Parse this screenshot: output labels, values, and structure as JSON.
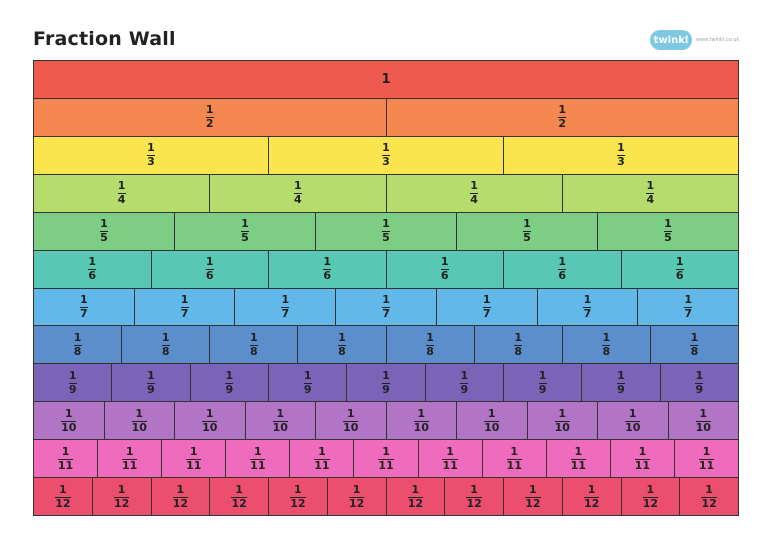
{
  "title": "Fraction Wall",
  "brand": {
    "logo_text": "twinkl",
    "url": "www.twinkl.co.uk",
    "logo_color": "#7ec8e3"
  },
  "wall": {
    "rows": [
      {
        "denominator": 1,
        "color": "#ef5a4e",
        "whole_label": "1"
      },
      {
        "denominator": 2,
        "color": "#f4874f"
      },
      {
        "denominator": 3,
        "color": "#fbe54f"
      },
      {
        "denominator": 4,
        "color": "#b5dc6c"
      },
      {
        "denominator": 5,
        "color": "#7dcd84"
      },
      {
        "denominator": 6,
        "color": "#58c7b4"
      },
      {
        "denominator": 7,
        "color": "#62b8e8"
      },
      {
        "denominator": 8,
        "color": "#5b8ecb"
      },
      {
        "denominator": 9,
        "color": "#7b64b8"
      },
      {
        "denominator": 10,
        "color": "#b275c5"
      },
      {
        "denominator": 11,
        "color": "#ef6cbc"
      },
      {
        "denominator": 12,
        "color": "#ec4f6e"
      }
    ]
  }
}
